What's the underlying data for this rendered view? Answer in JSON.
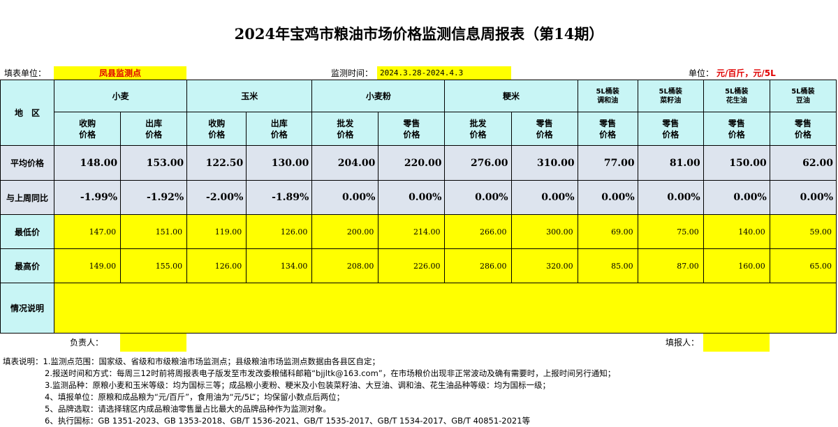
{
  "title": "2024年宝鸡市粮油市场价格监测信息周报表（第14期）",
  "meta": {
    "unit_label": "填表单位：",
    "unit_value": "凤县监测点",
    "time_label": "监测时间：",
    "time_value": "2024.3.28-2024.4.3",
    "measure_label": "单位：",
    "measure_value": "元/百斤，元/5L"
  },
  "header": {
    "area": "地　区",
    "groups": [
      "小麦",
      "玉米",
      "小麦粉",
      "粳米"
    ],
    "oil_groups": [
      "5L桶装\n调和油",
      "5L桶装\n菜籽油",
      "5L桶装\n花生油",
      "5L桶装\n豆油"
    ],
    "sub": [
      "收购\n价格",
      "出库\n价格",
      "收购\n价格",
      "出库\n价格",
      "批发\n价格",
      "零售\n价格",
      "批发\n价格",
      "零售\n价格",
      "零售\n价格",
      "零售\n价格",
      "零售\n价格",
      "零售\n价格"
    ]
  },
  "rows": {
    "avg": {
      "label": "平均价格",
      "values": [
        "148.00",
        "153.00",
        "122.50",
        "130.00",
        "204.00",
        "220.00",
        "276.00",
        "310.00",
        "77.00",
        "81.00",
        "150.00",
        "62.00"
      ]
    },
    "yoy": {
      "label": "与上周同比",
      "values": [
        "-1.99%",
        "-1.92%",
        "-2.00%",
        "-1.89%",
        "0.00%",
        "0.00%",
        "0.00%",
        "0.00%",
        "0.00%",
        "0.00%",
        "0.00%",
        "0.00%"
      ]
    },
    "min": {
      "label": "最低价",
      "values": [
        "147.00",
        "151.00",
        "119.00",
        "126.00",
        "200.00",
        "214.00",
        "266.00",
        "300.00",
        "69.00",
        "75.00",
        "140.00",
        "59.00"
      ]
    },
    "max": {
      "label": "最高价",
      "values": [
        "149.00",
        "155.00",
        "126.00",
        "134.00",
        "208.00",
        "226.00",
        "286.00",
        "320.00",
        "85.00",
        "87.00",
        "160.00",
        "65.00"
      ]
    },
    "notes_label": "情况说明"
  },
  "footer": {
    "responsible": "负责人：",
    "reporter": "填报人："
  },
  "notes": [
    "填表说明：1.监测点范围：国家级、省级和市级粮油市场监测点；县级粮油市场监测点数据由各县区自定；",
    "2.报送时间和方式：每周三12时前将周报表电子版发至市发改委粮储科邮箱“bjjltk@163.com”，在市场粮价出现非正常波动及确有需要时，上报时间另行通知；",
    "3.监测品种：原粮小麦和玉米等级：均为国标三等；成品粮小麦粉、粳米及小包装菜籽油、大豆油、调和油、花生油品种等级：均为国标一级；",
    "4、填报单位：原粮和成品粮为“元/百斤”，食用油为“元/5L”；均保留小数点后两位；",
    "5、品牌选取：请选择辖区内成品粮油零售量占比最大的品牌品种作为监测对象。",
    "6、执行国标：GB 1351-2023、GB 1353-2018、GB/T 1536-2021、GB/T 1535-2017、GB/T 1534-2017、GB/T 40851-2021等"
  ]
}
